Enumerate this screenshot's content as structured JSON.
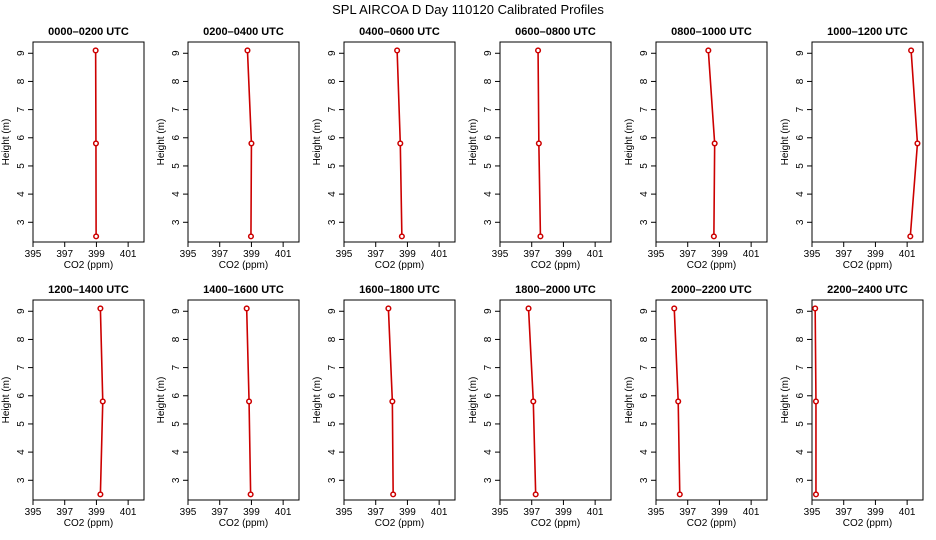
{
  "figure": {
    "title": "SPL AIRCOA D  Day 110120  Calibrated Profiles",
    "xlabel": "CO2 (ppm)",
    "ylabel": "Height (m)",
    "colors": {
      "line": "#cc0000",
      "point": "#cc0000",
      "axis": "#000000"
    }
  },
  "chart_data": [
    {
      "type": "line",
      "title": "0000–0200 UTC",
      "xlim": [
        395,
        402
      ],
      "ylim": [
        2.3,
        9.4
      ],
      "xticks": [
        "395",
        "397",
        "399",
        "401"
      ],
      "yticks": [
        "3",
        "4",
        "5",
        "6",
        "7",
        "8",
        "9"
      ],
      "series": [
        {
          "name": "profile",
          "x": [
            398.95,
            398.97,
            398.98
          ],
          "y": [
            9.1,
            5.8,
            2.5
          ]
        }
      ]
    },
    {
      "type": "line",
      "title": "0200–0400 UTC",
      "xlim": [
        395,
        402
      ],
      "ylim": [
        2.3,
        9.4
      ],
      "xticks": [
        "395",
        "397",
        "399",
        "401"
      ],
      "yticks": [
        "3",
        "4",
        "5",
        "6",
        "7",
        "8",
        "9"
      ],
      "series": [
        {
          "name": "profile",
          "x": [
            398.75,
            399.0,
            398.97
          ],
          "y": [
            9.1,
            5.8,
            2.5
          ]
        }
      ]
    },
    {
      "type": "line",
      "title": "0400–0600 UTC",
      "xlim": [
        395,
        402
      ],
      "ylim": [
        2.3,
        9.4
      ],
      "xticks": [
        "395",
        "397",
        "399",
        "401"
      ],
      "yticks": [
        "3",
        "4",
        "5",
        "6",
        "7",
        "8",
        "9"
      ],
      "series": [
        {
          "name": "profile",
          "x": [
            398.35,
            398.55,
            398.65
          ],
          "y": [
            9.1,
            5.8,
            2.5
          ]
        }
      ]
    },
    {
      "type": "line",
      "title": "0600–0800 UTC",
      "xlim": [
        395,
        402
      ],
      "ylim": [
        2.3,
        9.4
      ],
      "xticks": [
        "395",
        "397",
        "399",
        "401"
      ],
      "yticks": [
        "3",
        "4",
        "5",
        "6",
        "7",
        "8",
        "9"
      ],
      "series": [
        {
          "name": "profile",
          "x": [
            397.4,
            397.45,
            397.55
          ],
          "y": [
            9.1,
            5.8,
            2.5
          ]
        }
      ]
    },
    {
      "type": "line",
      "title": "0800–1000 UTC",
      "xlim": [
        395,
        402
      ],
      "ylim": [
        2.3,
        9.4
      ],
      "xticks": [
        "395",
        "397",
        "399",
        "401"
      ],
      "yticks": [
        "3",
        "4",
        "5",
        "6",
        "7",
        "8",
        "9"
      ],
      "series": [
        {
          "name": "profile",
          "x": [
            398.3,
            398.7,
            398.65
          ],
          "y": [
            9.1,
            5.8,
            2.5
          ]
        }
      ]
    },
    {
      "type": "line",
      "title": "1000–1200 UTC",
      "xlim": [
        395,
        402
      ],
      "ylim": [
        2.3,
        9.4
      ],
      "xticks": [
        "395",
        "397",
        "399",
        "401"
      ],
      "yticks": [
        "3",
        "4",
        "5",
        "6",
        "7",
        "8",
        "9"
      ],
      "series": [
        {
          "name": "profile",
          "x": [
            401.25,
            401.65,
            401.2
          ],
          "y": [
            9.1,
            5.8,
            2.5
          ]
        }
      ]
    },
    {
      "type": "line",
      "title": "1200–1400 UTC",
      "xlim": [
        395,
        402
      ],
      "ylim": [
        2.3,
        9.4
      ],
      "xticks": [
        "395",
        "397",
        "399",
        "401"
      ],
      "yticks": [
        "3",
        "4",
        "5",
        "6",
        "7",
        "8",
        "9"
      ],
      "series": [
        {
          "name": "profile",
          "x": [
            399.25,
            399.4,
            399.25
          ],
          "y": [
            9.1,
            5.8,
            2.5
          ]
        }
      ]
    },
    {
      "type": "line",
      "title": "1400–1600 UTC",
      "xlim": [
        395,
        402
      ],
      "ylim": [
        2.3,
        9.4
      ],
      "xticks": [
        "395",
        "397",
        "399",
        "401"
      ],
      "yticks": [
        "3",
        "4",
        "5",
        "6",
        "7",
        "8",
        "9"
      ],
      "series": [
        {
          "name": "profile",
          "x": [
            398.7,
            398.85,
            398.95
          ],
          "y": [
            9.1,
            5.8,
            2.5
          ]
        }
      ]
    },
    {
      "type": "line",
      "title": "1600–1800 UTC",
      "xlim": [
        395,
        402
      ],
      "ylim": [
        2.3,
        9.4
      ],
      "xticks": [
        "395",
        "397",
        "399",
        "401"
      ],
      "yticks": [
        "3",
        "4",
        "5",
        "6",
        "7",
        "8",
        "9"
      ],
      "series": [
        {
          "name": "profile",
          "x": [
            397.8,
            398.05,
            398.1
          ],
          "y": [
            9.1,
            5.8,
            2.5
          ]
        }
      ]
    },
    {
      "type": "line",
      "title": "1800–2000 UTC",
      "xlim": [
        395,
        402
      ],
      "ylim": [
        2.3,
        9.4
      ],
      "xticks": [
        "395",
        "397",
        "399",
        "401"
      ],
      "yticks": [
        "3",
        "4",
        "5",
        "6",
        "7",
        "8",
        "9"
      ],
      "series": [
        {
          "name": "profile",
          "x": [
            396.8,
            397.1,
            397.25
          ],
          "y": [
            9.1,
            5.8,
            2.5
          ]
        }
      ]
    },
    {
      "type": "line",
      "title": "2000–2200 UTC",
      "xlim": [
        395,
        402
      ],
      "ylim": [
        2.3,
        9.4
      ],
      "xticks": [
        "395",
        "397",
        "399",
        "401"
      ],
      "yticks": [
        "3",
        "4",
        "5",
        "6",
        "7",
        "8",
        "9"
      ],
      "series": [
        {
          "name": "profile",
          "x": [
            396.15,
            396.4,
            396.5
          ],
          "y": [
            9.1,
            5.8,
            2.5
          ]
        }
      ]
    },
    {
      "type": "line",
      "title": "2200–2400 UTC",
      "xlim": [
        395,
        402
      ],
      "ylim": [
        2.3,
        9.4
      ],
      "xticks": [
        "395",
        "397",
        "399",
        "401"
      ],
      "yticks": [
        "3",
        "4",
        "5",
        "6",
        "7",
        "8",
        "9"
      ],
      "series": [
        {
          "name": "profile",
          "x": [
            395.2,
            395.25,
            395.25
          ],
          "y": [
            9.1,
            5.8,
            2.5
          ]
        }
      ]
    }
  ]
}
